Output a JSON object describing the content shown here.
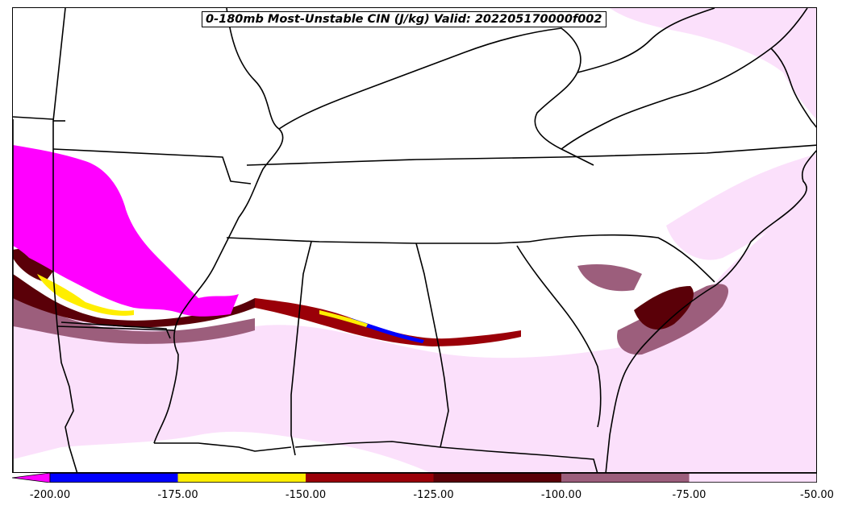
{
  "title": "0-180mb Most-Unstable CIN (J/kg) Valid: 202205170000f002",
  "colorbar": {
    "min": -200,
    "max": -50,
    "extend": "min",
    "tick_labels": [
      "-200.00",
      "-175.00",
      "-150.00",
      "-125.00",
      "-100.00",
      "-75.00",
      "-50.00"
    ],
    "bins": [
      {
        "from": -200,
        "to": -175,
        "color": "#0000ff"
      },
      {
        "from": -175,
        "to": -150,
        "color": "#ffee00"
      },
      {
        "from": -150,
        "to": -125,
        "color": "#9a0008"
      },
      {
        "from": -125,
        "to": -100,
        "color": "#5a0008"
      },
      {
        "from": -100,
        "to": -75,
        "color": "#9c5e7c"
      },
      {
        "from": -75,
        "to": -50,
        "color": "#fbe0fb"
      }
    ],
    "under_color": "#ff00ff"
  },
  "map": {
    "region": "Southeastern United States",
    "boundaries": "state-lines-and-coastlines"
  }
}
